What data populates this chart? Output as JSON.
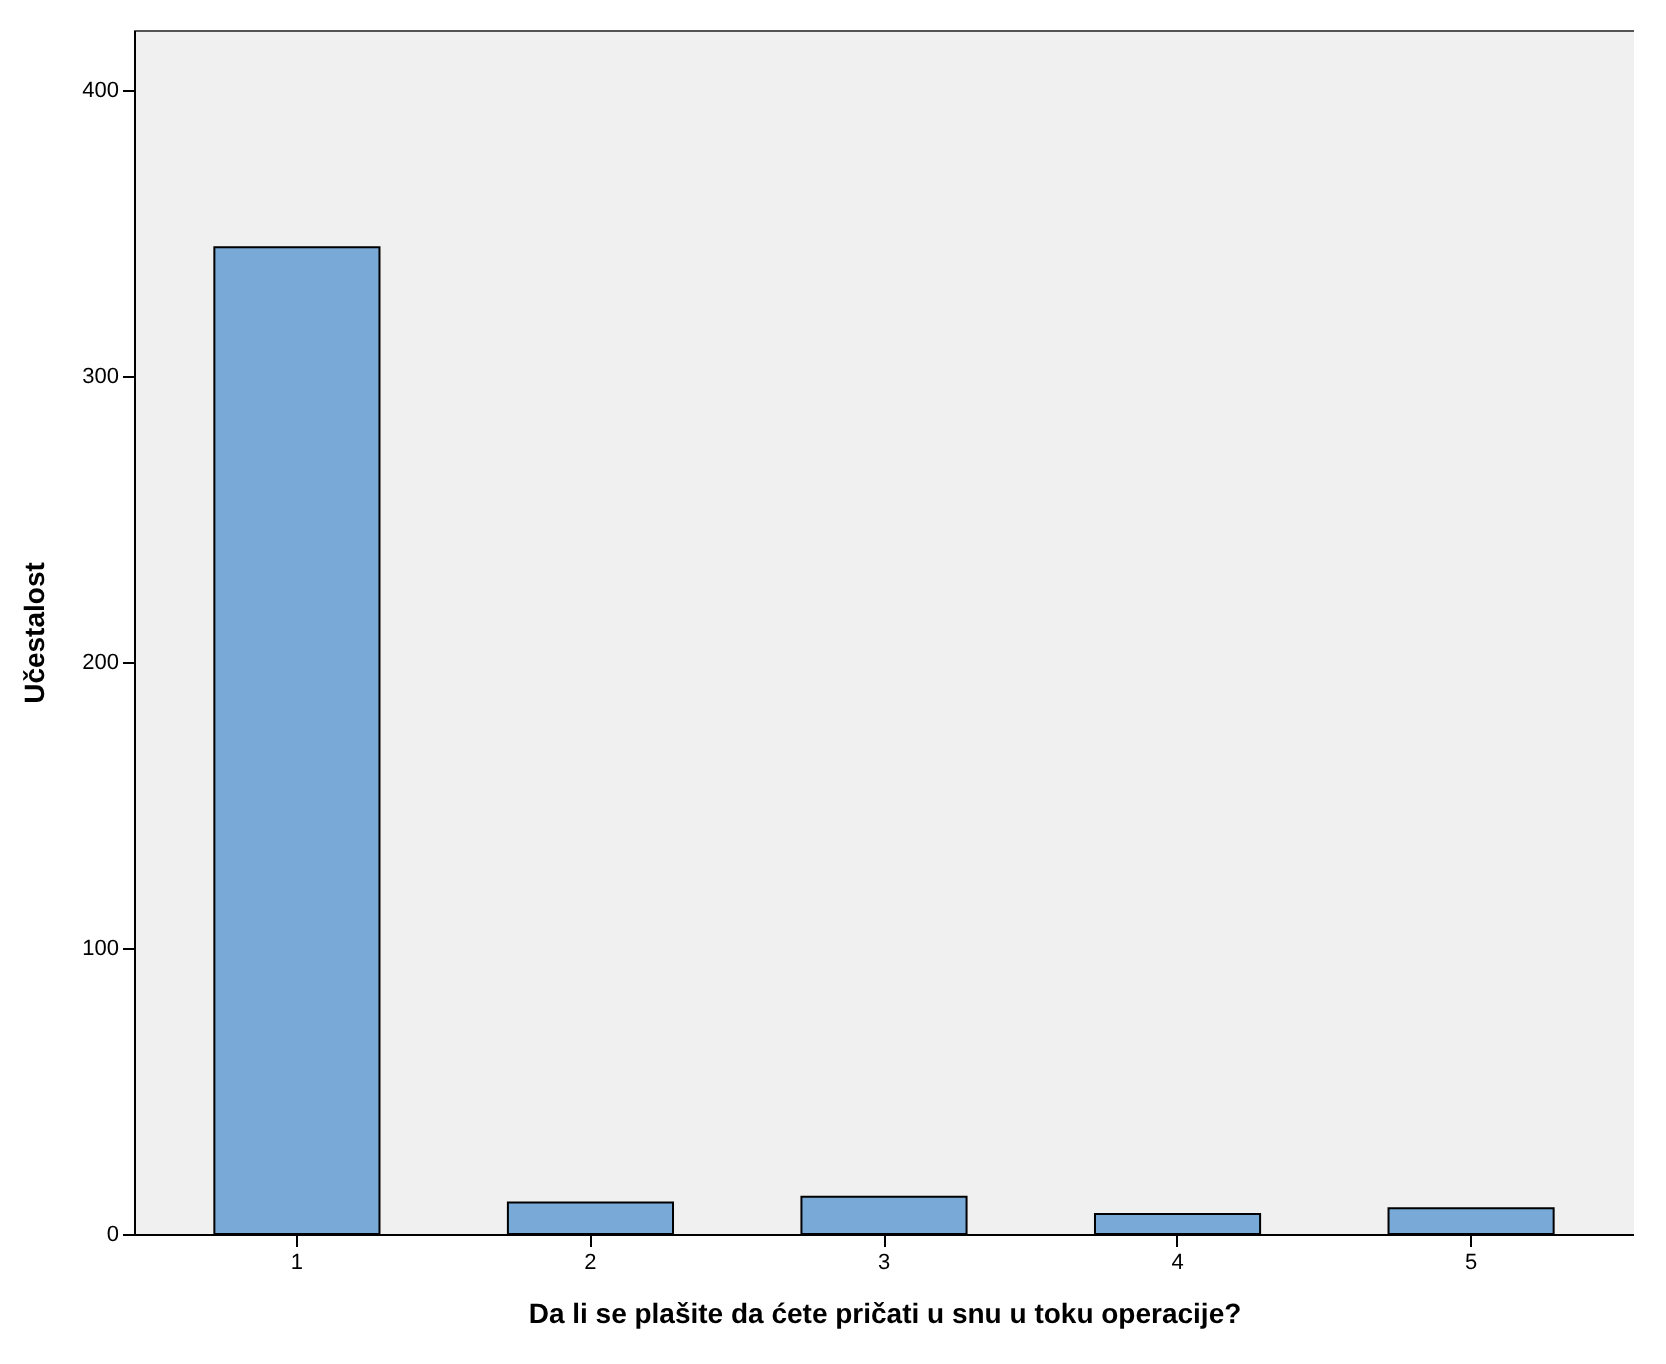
{
  "chart_data": {
    "type": "bar",
    "xlabel": "Da li se plašite da ćete pričati u snu u toku operacije?",
    "ylabel": "Učestalost",
    "categories": [
      "1",
      "2",
      "3",
      "4",
      "5"
    ],
    "values": [
      345,
      11,
      13,
      7,
      9
    ],
    "color": "#79a9d6",
    "ylim": [
      0,
      421
    ],
    "yticks": [
      0,
      100,
      200,
      300,
      400
    ],
    "grid": false
  }
}
